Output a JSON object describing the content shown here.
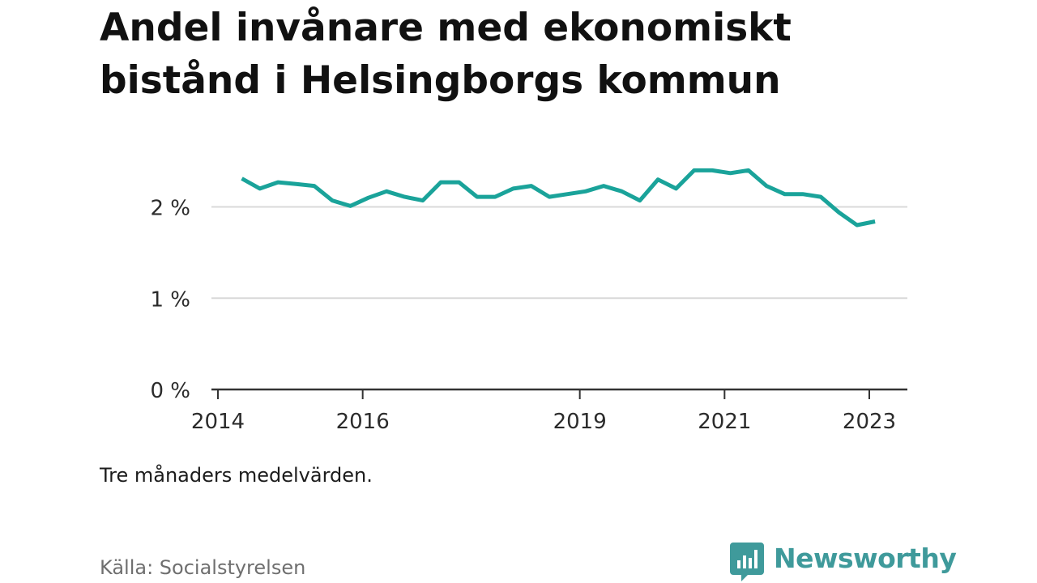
{
  "chart_data": {
    "type": "line",
    "title": "Andel invånare med ekonomiskt bistånd i Helsingborgs kommun",
    "note": "Tre månaders medelvärden.",
    "source": "Källa: Socialstyrelsen",
    "x_unit": "year",
    "xlim": [
      2014,
      2023.25
    ],
    "ylim": [
      0,
      2.5
    ],
    "y_ticks": [
      0,
      1,
      2
    ],
    "y_tick_labels": [
      "0 %",
      "1 %",
      "2 %"
    ],
    "x_ticks": [
      2014,
      2016,
      2019,
      2021,
      2023
    ],
    "x_tick_labels": [
      "2014",
      "2016",
      "2019",
      "2021",
      "2023"
    ],
    "grid": true,
    "line_color": "#1aa39a",
    "series": [
      {
        "x": [
          2014.33,
          2014.58,
          2014.83,
          2015.08,
          2015.33,
          2015.58,
          2015.83,
          2016.08,
          2016.33,
          2016.58,
          2016.83,
          2017.08,
          2017.33,
          2017.58,
          2017.83,
          2018.08,
          2018.33,
          2018.58,
          2018.83,
          2019.08,
          2019.33,
          2019.58,
          2019.83,
          2020.08,
          2020.33,
          2020.58,
          2020.83,
          2021.08,
          2021.33,
          2021.58,
          2021.83,
          2022.08,
          2022.33,
          2022.58,
          2022.83,
          2023.08
        ],
        "y": [
          2.31,
          2.2,
          2.27,
          2.25,
          2.23,
          2.07,
          2.01,
          2.1,
          2.17,
          2.11,
          2.07,
          2.27,
          2.27,
          2.11,
          2.11,
          2.2,
          2.23,
          2.11,
          2.14,
          2.17,
          2.23,
          2.17,
          2.07,
          2.3,
          2.2,
          2.4,
          2.4,
          2.37,
          2.4,
          2.23,
          2.14,
          2.14,
          2.11,
          1.94,
          1.8,
          1.84
        ]
      }
    ]
  },
  "brand": {
    "name": "Newsworthy",
    "color": "#3f9a9b",
    "icon": "newsworthy-logo-icon"
  }
}
